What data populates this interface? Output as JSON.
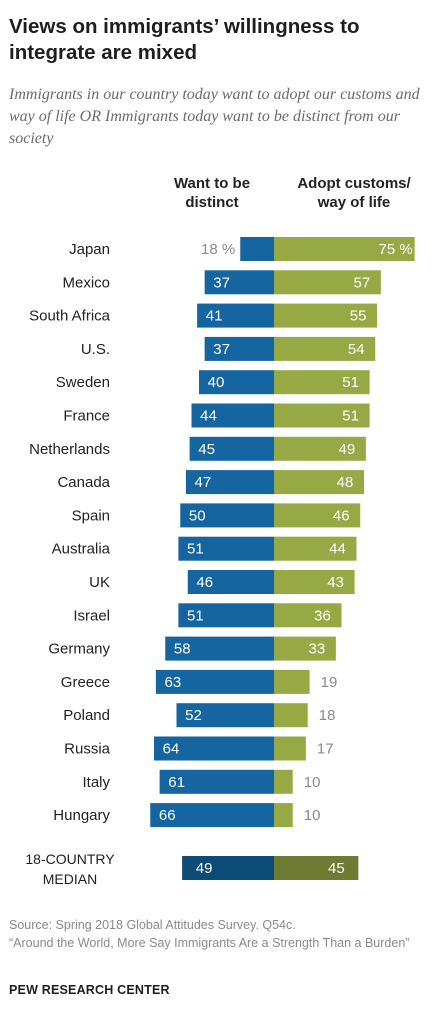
{
  "header": {
    "title": "Views on immigrants’ willingness to integrate are mixed",
    "subtitle": "Immigrants in our country today want to adopt our customs and way of life OR Immigrants today want to be distinct from our society"
  },
  "footer": {
    "source": "Source: Spring 2018 Global Attitudes Survey. Q54c.",
    "report": "“Around the World, More Say Immigrants Are a Strength Than a Burden”",
    "brand": "PEW RESEARCH CENTER"
  },
  "colors": {
    "distinct": "#1565a0",
    "adopt": "#97a945",
    "median_distinct": "#0b4b75",
    "median_adopt": "#6f7a33",
    "outside_label": "#8a8a8a"
  },
  "chart_data": {
    "type": "bar",
    "orientation": "horizontal-diverging",
    "categories": [
      "Japan",
      "Mexico",
      "South Africa",
      "U.S.",
      "Sweden",
      "France",
      "Netherlands",
      "Canada",
      "Spain",
      "Australia",
      "UK",
      "Israel",
      "Germany",
      "Greece",
      "Poland",
      "Russia",
      "Italy",
      "Hungary"
    ],
    "series": [
      {
        "name": "Want to be distinct",
        "values": [
          18,
          37,
          41,
          37,
          40,
          44,
          45,
          47,
          50,
          51,
          46,
          51,
          58,
          63,
          52,
          64,
          61,
          66
        ]
      },
      {
        "name": "Adopt customs/ way of life",
        "values": [
          75,
          57,
          55,
          54,
          51,
          51,
          49,
          48,
          46,
          44,
          43,
          36,
          33,
          19,
          18,
          17,
          10,
          10
        ]
      }
    ],
    "value_labels": {
      "distinct": [
        "18 %",
        "37",
        "41",
        "37",
        "40",
        "44",
        "45",
        "47",
        "50",
        "51",
        "46",
        "51",
        "58",
        "63",
        "52",
        "64",
        "61",
        "66"
      ],
      "adopt": [
        "75 %",
        "57",
        "55",
        "54",
        "51",
        "51",
        "49",
        "48",
        "46",
        "44",
        "43",
        "36",
        "33",
        "19",
        "18",
        "17",
        "10",
        "10"
      ]
    },
    "column_headers": {
      "distinct": "Want to be distinct",
      "adopt": "Adopt customs/ way of life"
    },
    "median": {
      "label": "18-COUNTRY MEDIAN",
      "distinct": 49,
      "adopt": 45
    },
    "unit": "%",
    "grid": false,
    "legend": "column headers above bars"
  }
}
